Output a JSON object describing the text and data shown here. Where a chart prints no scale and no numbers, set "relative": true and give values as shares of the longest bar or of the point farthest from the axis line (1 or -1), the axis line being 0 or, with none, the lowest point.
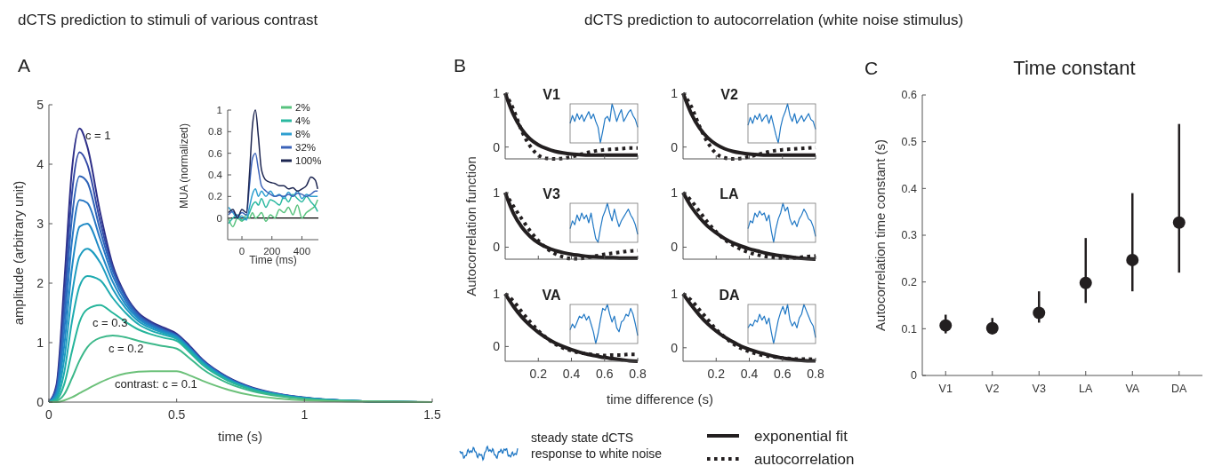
{
  "chart_data": [
    {
      "type": "line",
      "title": "dCTS prediction to stimuli of various contrast",
      "xlabel": "time (s)",
      "ylabel": "amplitude (arbitrary unit)",
      "xlim": [
        0,
        1.5
      ],
      "xticks": [
        0,
        0.5,
        1,
        1.5
      ],
      "ylim": [
        0,
        5
      ],
      "yticks": [
        0,
        1,
        2,
        3,
        4,
        5
      ],
      "legend": false,
      "annotations": [
        "A",
        "c = 1",
        "c = 0.3",
        "c = 0.2",
        "contrast: c = 0.1"
      ],
      "x": [
        0,
        0.03,
        0.06,
        0.09,
        0.12,
        0.15,
        0.2,
        0.25,
        0.3,
        0.35,
        0.4,
        0.45,
        0.5,
        0.55,
        0.6,
        0.7,
        0.8,
        0.9,
        1.0,
        1.2,
        1.5
      ],
      "series": [
        {
          "color": "#2e2f88",
          "values": [
            0,
            0.3,
            2.0,
            3.9,
            4.6,
            4.3,
            3.2,
            2.3,
            1.8,
            1.5,
            1.35,
            1.25,
            1.15,
            0.95,
            0.72,
            0.42,
            0.24,
            0.14,
            0.08,
            0.02,
            0
          ]
        },
        {
          "color": "#3349a6",
          "values": [
            0,
            0.25,
            1.7,
            3.5,
            4.2,
            4.0,
            3.05,
            2.25,
            1.78,
            1.48,
            1.33,
            1.23,
            1.13,
            0.93,
            0.71,
            0.41,
            0.23,
            0.13,
            0.07,
            0.02,
            0
          ]
        },
        {
          "color": "#2f63b8",
          "values": [
            0,
            0.2,
            1.45,
            3.1,
            3.8,
            3.7,
            2.9,
            2.2,
            1.75,
            1.46,
            1.31,
            1.21,
            1.12,
            0.92,
            0.7,
            0.4,
            0.23,
            0.13,
            0.07,
            0.02,
            0
          ]
        },
        {
          "color": "#2877c4",
          "values": [
            0,
            0.17,
            1.2,
            2.7,
            3.4,
            3.35,
            2.75,
            2.12,
            1.7,
            1.43,
            1.29,
            1.2,
            1.11,
            0.91,
            0.69,
            0.4,
            0.22,
            0.13,
            0.07,
            0.02,
            0
          ]
        },
        {
          "color": "#208ac6",
          "values": [
            0,
            0.14,
            0.95,
            2.25,
            2.95,
            3.0,
            2.55,
            2.02,
            1.64,
            1.4,
            1.27,
            1.18,
            1.1,
            0.9,
            0.68,
            0.39,
            0.22,
            0.12,
            0.07,
            0.02,
            0
          ]
        },
        {
          "color": "#1d9cc0",
          "values": [
            0,
            0.1,
            0.72,
            1.8,
            2.45,
            2.58,
            2.35,
            1.9,
            1.58,
            1.36,
            1.24,
            1.16,
            1.08,
            0.89,
            0.67,
            0.38,
            0.21,
            0.12,
            0.06,
            0.02,
            0
          ]
        },
        {
          "color": "#1fabb0",
          "values": [
            0,
            0.07,
            0.5,
            1.35,
            1.95,
            2.12,
            2.05,
            1.75,
            1.5,
            1.31,
            1.2,
            1.13,
            1.06,
            0.87,
            0.66,
            0.37,
            0.21,
            0.12,
            0.06,
            0.02,
            0
          ]
        },
        {
          "color": "#26b59b",
          "values": [
            0,
            0.04,
            0.3,
            0.85,
            1.35,
            1.56,
            1.63,
            1.5,
            1.35,
            1.22,
            1.14,
            1.08,
            1.03,
            0.84,
            0.63,
            0.36,
            0.2,
            0.11,
            0.06,
            0.02,
            0
          ]
        },
        {
          "color": "#3cb88a",
          "values": [
            0,
            0.02,
            0.13,
            0.4,
            0.7,
            0.92,
            1.08,
            1.12,
            1.09,
            1.03,
            0.98,
            0.94,
            0.9,
            0.74,
            0.56,
            0.32,
            0.18,
            0.1,
            0.05,
            0.01,
            0
          ]
        },
        {
          "color": "#6cc17a",
          "values": [
            0,
            0,
            0.03,
            0.08,
            0.15,
            0.22,
            0.33,
            0.42,
            0.48,
            0.51,
            0.52,
            0.52,
            0.52,
            0.45,
            0.36,
            0.21,
            0.11,
            0.06,
            0.03,
            0.01,
            0
          ]
        }
      ]
    },
    {
      "type": "line",
      "xlabel": "Time (ms)",
      "ylabel": "MUA (normalized)",
      "xlim": [
        -95,
        510
      ],
      "xticks": [
        0,
        200,
        400
      ],
      "ylim": [
        -0.2,
        1
      ],
      "yticks": [
        0,
        0.2,
        0.4,
        0.6,
        0.8,
        1
      ],
      "legend": "top right",
      "ref_lines": [
        {
          "axis": "y",
          "value": 0,
          "color": "#000000"
        }
      ],
      "x": [
        -90,
        -60,
        -30,
        0,
        30,
        50,
        70,
        90,
        110,
        130,
        160,
        190,
        220,
        250,
        280,
        310,
        340,
        370,
        400,
        430,
        460,
        490,
        505
      ],
      "series": [
        {
          "name": "2%",
          "color": "#58c27e",
          "values": [
            0.0,
            -0.08,
            0.0,
            -0.03,
            0.03,
            0.0,
            0.05,
            0.0,
            0.02,
            0.05,
            -0.03,
            0.03,
            0.0,
            0.08,
            0.05,
            0.1,
            0.03,
            0.12,
            0.0,
            0.05,
            0.08,
            0.12,
            0.17
          ]
        },
        {
          "name": "4%",
          "color": "#2ab8a0",
          "values": [
            -0.05,
            0.0,
            0.03,
            -0.02,
            0.0,
            0.05,
            0.12,
            0.15,
            0.12,
            0.18,
            0.1,
            0.17,
            0.15,
            0.12,
            0.2,
            0.15,
            0.22,
            0.18,
            0.15,
            0.2,
            0.15,
            0.1,
            0.06
          ]
        },
        {
          "name": "8%",
          "color": "#2e9fd0",
          "values": [
            0.1,
            0.05,
            0.0,
            0.02,
            -0.02,
            0.1,
            0.22,
            0.27,
            0.2,
            0.25,
            0.2,
            0.25,
            0.2,
            0.22,
            0.18,
            0.24,
            0.2,
            0.25,
            0.18,
            0.22,
            0.2,
            0.2,
            0.2
          ]
        },
        {
          "name": "32%",
          "color": "#3a62b8",
          "values": [
            0.03,
            0.06,
            0.02,
            0.05,
            0.03,
            0.3,
            0.55,
            0.6,
            0.45,
            0.3,
            0.25,
            0.22,
            0.2,
            0.21,
            0.2,
            0.22,
            0.2,
            0.23,
            0.22,
            0.2,
            0.22,
            0.25,
            0.25
          ]
        },
        {
          "name": "100%",
          "color": "#1c2550",
          "values": [
            0.05,
            0.08,
            0.0,
            0.08,
            0.05,
            0.4,
            0.85,
            1.0,
            0.75,
            0.45,
            0.35,
            0.33,
            0.32,
            0.3,
            0.3,
            0.27,
            0.28,
            0.25,
            0.27,
            0.3,
            0.38,
            0.35,
            0.27
          ]
        }
      ]
    },
    {
      "type": "line",
      "title": "V1",
      "xlim": [
        0,
        0.8
      ],
      "xticks": [
        0.2,
        0.4,
        0.6,
        0.8
      ],
      "ylim": [
        -0.22,
        1
      ],
      "yticks": [
        0,
        1
      ],
      "tick_labels": "y",
      "annotations": [
        "B",
        "dCTS prediction to autocorrelation (white noise stimulus)",
        "steady state dCTS response to white noise"
      ],
      "x": [
        0,
        0.05,
        0.1,
        0.15,
        0.2,
        0.25,
        0.3,
        0.35,
        0.4,
        0.45,
        0.5,
        0.55,
        0.6,
        0.65,
        0.7,
        0.75,
        0.8
      ],
      "series": [
        {
          "color": "#231f20",
          "line_style": "solid",
          "values": [
            1,
            0.6,
            0.33,
            0.15,
            0.04,
            -0.03,
            -0.08,
            -0.11,
            -0.13,
            -0.14,
            -0.15,
            -0.15,
            -0.15,
            -0.15,
            -0.15,
            -0.15,
            -0.15
          ]
        },
        {
          "color": "#231f20",
          "line_style": "dotted",
          "values": [
            1,
            0.7,
            0.3,
            0.02,
            -0.15,
            -0.21,
            -0.22,
            -0.21,
            -0.18,
            -0.14,
            -0.1,
            -0.07,
            -0.05,
            -0.04,
            -0.03,
            -0.02,
            -0.02
          ]
        }
      ]
    },
    {
      "type": "line",
      "title": "V2",
      "xlim": [
        0,
        0.8
      ],
      "xticks": [
        0.2,
        0.4,
        0.6,
        0.8
      ],
      "ylim": [
        -0.22,
        1
      ],
      "yticks": [
        0,
        1
      ],
      "tick_labels": "y",
      "x": [
        0,
        0.05,
        0.1,
        0.15,
        0.2,
        0.25,
        0.3,
        0.35,
        0.4,
        0.45,
        0.5,
        0.55,
        0.6,
        0.65,
        0.7,
        0.75,
        0.8
      ],
      "series": [
        {
          "color": "#231f20",
          "line_style": "solid",
          "values": [
            1,
            0.62,
            0.35,
            0.17,
            0.05,
            -0.03,
            -0.08,
            -0.11,
            -0.13,
            -0.14,
            -0.15,
            -0.15,
            -0.15,
            -0.15,
            -0.15,
            -0.15,
            -0.15
          ]
        },
        {
          "color": "#231f20",
          "line_style": "dotted",
          "values": [
            1,
            0.75,
            0.38,
            0.08,
            -0.12,
            -0.2,
            -0.22,
            -0.21,
            -0.18,
            -0.14,
            -0.1,
            -0.07,
            -0.05,
            -0.04,
            -0.03,
            -0.02,
            -0.01
          ]
        }
      ]
    },
    {
      "type": "line",
      "title": "V3",
      "ylabel": "Autocorrelation function",
      "xlim": [
        0,
        0.8
      ],
      "xticks": [
        0.2,
        0.4,
        0.6,
        0.8
      ],
      "ylim": [
        -0.22,
        1
      ],
      "yticks": [
        0,
        1
      ],
      "tick_labels": "y",
      "x": [
        0,
        0.05,
        0.1,
        0.15,
        0.2,
        0.25,
        0.3,
        0.35,
        0.4,
        0.45,
        0.5,
        0.55,
        0.6,
        0.65,
        0.7,
        0.75,
        0.8
      ],
      "series": [
        {
          "color": "#231f20",
          "line_style": "solid",
          "values": [
            1,
            0.62,
            0.37,
            0.2,
            0.08,
            0.0,
            -0.06,
            -0.1,
            -0.13,
            -0.15,
            -0.17,
            -0.18,
            -0.19,
            -0.19,
            -0.2,
            -0.2,
            -0.2
          ]
        },
        {
          "color": "#231f20",
          "line_style": "dotted",
          "values": [
            1,
            0.75,
            0.52,
            0.3,
            0.12,
            -0.02,
            -0.12,
            -0.18,
            -0.21,
            -0.21,
            -0.19,
            -0.16,
            -0.13,
            -0.11,
            -0.09,
            -0.07,
            -0.06
          ]
        }
      ]
    },
    {
      "type": "line",
      "title": "LA",
      "xlim": [
        0,
        0.8
      ],
      "xticks": [
        0.2,
        0.4,
        0.6,
        0.8
      ],
      "ylim": [
        -0.22,
        1
      ],
      "yticks": [
        0,
        1
      ],
      "tick_labels": "y",
      "x": [
        0,
        0.05,
        0.1,
        0.15,
        0.2,
        0.25,
        0.3,
        0.35,
        0.4,
        0.45,
        0.5,
        0.55,
        0.6,
        0.65,
        0.7,
        0.75,
        0.8
      ],
      "series": [
        {
          "color": "#231f20",
          "line_style": "solid",
          "values": [
            1,
            0.74,
            0.54,
            0.38,
            0.26,
            0.16,
            0.08,
            0.02,
            -0.03,
            -0.07,
            -0.11,
            -0.14,
            -0.16,
            -0.18,
            -0.2,
            -0.21,
            -0.22
          ]
        },
        {
          "color": "#231f20",
          "line_style": "dotted",
          "values": [
            1,
            0.85,
            0.65,
            0.45,
            0.28,
            0.14,
            0.04,
            -0.04,
            -0.1,
            -0.14,
            -0.17,
            -0.19,
            -0.2,
            -0.2,
            -0.19,
            -0.17,
            -0.16
          ]
        }
      ]
    },
    {
      "type": "line",
      "title": "VA",
      "xlabel": "time difference (s)",
      "xlim": [
        0,
        0.8
      ],
      "xticks": [
        0.2,
        0.4,
        0.6,
        0.8
      ],
      "ylim": [
        -0.28,
        1
      ],
      "yticks": [
        0,
        1
      ],
      "x": [
        0,
        0.05,
        0.1,
        0.15,
        0.2,
        0.25,
        0.3,
        0.35,
        0.4,
        0.45,
        0.5,
        0.55,
        0.6,
        0.65,
        0.7,
        0.75,
        0.8
      ],
      "series": [
        {
          "color": "#231f20",
          "line_style": "solid",
          "values": [
            1,
            0.76,
            0.56,
            0.4,
            0.27,
            0.16,
            0.07,
            0.0,
            -0.06,
            -0.11,
            -0.15,
            -0.18,
            -0.21,
            -0.23,
            -0.25,
            -0.27,
            -0.28
          ]
        },
        {
          "color": "#231f20",
          "line_style": "dotted",
          "values": [
            1,
            0.86,
            0.66,
            0.47,
            0.3,
            0.16,
            0.05,
            -0.03,
            -0.08,
            -0.12,
            -0.14,
            -0.16,
            -0.17,
            -0.16,
            -0.16,
            -0.15,
            -0.15
          ]
        }
      ]
    },
    {
      "type": "line",
      "title": "DA",
      "xlim": [
        0,
        0.8
      ],
      "xticks": [
        0.2,
        0.4,
        0.6,
        0.8
      ],
      "ylim": [
        -0.25,
        1
      ],
      "yticks": [
        0,
        1
      ],
      "legend": "bottom",
      "x": [
        0,
        0.05,
        0.1,
        0.15,
        0.2,
        0.25,
        0.3,
        0.35,
        0.4,
        0.45,
        0.5,
        0.55,
        0.6,
        0.65,
        0.7,
        0.75,
        0.8
      ],
      "series": [
        {
          "name": "exponential fit",
          "color": "#231f20",
          "line_style": "solid",
          "values": [
            1,
            0.79,
            0.6,
            0.44,
            0.31,
            0.2,
            0.11,
            0.03,
            -0.03,
            -0.08,
            -0.12,
            -0.16,
            -0.19,
            -0.21,
            -0.23,
            -0.24,
            -0.24
          ]
        },
        {
          "name": "autocorrelation",
          "color": "#231f20",
          "line_style": "dotted",
          "values": [
            1,
            0.88,
            0.7,
            0.52,
            0.34,
            0.2,
            0.08,
            -0.01,
            -0.07,
            -0.12,
            -0.15,
            -0.17,
            -0.19,
            -0.2,
            -0.21,
            -0.21,
            -0.22
          ]
        }
      ]
    },
    {
      "type": "scatter",
      "title": "Time constant",
      "ylabel": "Autocorrelation time constant (s)",
      "annotations": [
        "C"
      ],
      "categories": [
        "V1",
        "V2",
        "V3",
        "LA",
        "VA",
        "DA"
      ],
      "ylim": [
        0,
        0.6
      ],
      "yticks": [
        0,
        0.1,
        0.2,
        0.3,
        0.4,
        0.5,
        0.6
      ],
      "marker": "circle",
      "color": "#231f20",
      "values": [
        0.107,
        0.101,
        0.134,
        0.198,
        0.247,
        0.327
      ],
      "errors": [
        [
          0.09,
          0.13
        ],
        [
          0.088,
          0.123
        ],
        [
          0.113,
          0.18
        ],
        [
          0.155,
          0.294
        ],
        [
          0.18,
          0.39
        ],
        [
          0.22,
          0.538
        ]
      ]
    },
    {
      "type": "line",
      "relative": true,
      "tick_labels": false,
      "color": "#1f77c4",
      "categories": [
        null,
        null,
        null,
        null,
        null,
        null,
        null,
        null,
        null,
        null,
        null,
        null,
        null,
        null,
        null,
        null,
        null,
        null,
        null,
        null,
        null,
        null,
        null,
        null,
        null,
        null,
        null,
        null,
        null,
        null
      ],
      "values": [
        0.5,
        0.7,
        0.55,
        0.75,
        0.6,
        0.72,
        0.55,
        0.68,
        0.8,
        0.62,
        0.74,
        0.55,
        0.4,
        0,
        0.3,
        0.62,
        0.68,
        0.55,
        1,
        0.8,
        0.55,
        0.72,
        0.85,
        0.55,
        0.66,
        0.78,
        0.85,
        0.7,
        0.6,
        0.4
      ]
    },
    {
      "type": "line",
      "relative": true,
      "tick_labels": false,
      "color": "#1f77c4",
      "categories": [
        null,
        null,
        null,
        null,
        null,
        null,
        null,
        null,
        null,
        null,
        null,
        null,
        null,
        null,
        null,
        null,
        null,
        null,
        null,
        null,
        null,
        null,
        null,
        null,
        null,
        null,
        null,
        null,
        null,
        null
      ],
      "values": [
        0.45,
        0.65,
        0.5,
        0.7,
        0.6,
        0.75,
        0.55,
        0.65,
        0.72,
        0.5,
        0.7,
        0.45,
        0.2,
        0,
        0.4,
        0.65,
        0.8,
        1,
        0.7,
        0.55,
        0.75,
        0.5,
        0.6,
        0.7,
        0.55,
        0.65,
        0.75,
        0.6,
        0.55,
        0.35
      ]
    },
    {
      "type": "line",
      "relative": true,
      "tick_labels": false,
      "color": "#1f77c4",
      "categories": [
        null,
        null,
        null,
        null,
        null,
        null,
        null,
        null,
        null,
        null,
        null,
        null,
        null,
        null,
        null,
        null,
        null,
        null,
        null,
        null,
        null,
        null,
        null,
        null,
        null,
        null,
        null,
        null,
        null,
        null
      ],
      "values": [
        0.35,
        0.55,
        0.45,
        0.7,
        0.55,
        0.75,
        0.6,
        0.7,
        0.5,
        0.75,
        0.4,
        0.1,
        0,
        0.35,
        0.65,
        0.8,
        1,
        0.75,
        0.55,
        0.85,
        0.6,
        0.4,
        0.55,
        0.65,
        0.75,
        0.85,
        0.7,
        0.6,
        0.45,
        0.2
      ]
    },
    {
      "type": "line",
      "relative": true,
      "tick_labels": false,
      "color": "#1f77c4",
      "categories": [
        null,
        null,
        null,
        null,
        null,
        null,
        null,
        null,
        null,
        null,
        null,
        null,
        null,
        null,
        null,
        null,
        null,
        null,
        null,
        null,
        null,
        null,
        null,
        null,
        null,
        null,
        null,
        null,
        null,
        null
      ],
      "values": [
        0.35,
        0.55,
        0.5,
        0.75,
        0.65,
        0.8,
        0.7,
        0.75,
        0.55,
        0.7,
        0.3,
        0,
        0.35,
        0.6,
        0.75,
        1,
        0.8,
        0.9,
        0.6,
        0.45,
        0.55,
        0.4,
        0.6,
        0.7,
        0.85,
        0.75,
        0.6,
        0.55,
        0.4,
        0.15
      ]
    },
    {
      "type": "line",
      "relative": true,
      "tick_labels": false,
      "color": "#1f77c4",
      "categories": [
        null,
        null,
        null,
        null,
        null,
        null,
        null,
        null,
        null,
        null,
        null,
        null,
        null,
        null,
        null,
        null,
        null,
        null,
        null,
        null,
        null,
        null,
        null,
        null,
        null,
        null,
        null,
        null,
        null,
        null
      ],
      "values": [
        0.35,
        0.5,
        0.4,
        0.55,
        0.7,
        0.65,
        0.75,
        0.6,
        0.7,
        0.5,
        0.3,
        0,
        0.25,
        0.6,
        0.9,
        0.85,
        1,
        0.75,
        0.55,
        0.7,
        0.4,
        0.3,
        0.55,
        0.6,
        0.75,
        0.7,
        0.9,
        0.75,
        0.5,
        0.2
      ]
    },
    {
      "type": "line",
      "relative": true,
      "tick_labels": false,
      "color": "#1f77c4",
      "categories": [
        null,
        null,
        null,
        null,
        null,
        null,
        null,
        null,
        null,
        null,
        null,
        null,
        null,
        null,
        null,
        null,
        null,
        null,
        null,
        null,
        null,
        null,
        null,
        null,
        null,
        null,
        null,
        null,
        null,
        null
      ],
      "values": [
        0.4,
        0.5,
        0.45,
        0.6,
        0.55,
        0.75,
        0.6,
        0.7,
        0.5,
        0.65,
        0.3,
        0,
        0.3,
        0.6,
        0.8,
        0.95,
        0.75,
        1,
        0.6,
        0.45,
        0.55,
        0.4,
        0.65,
        0.75,
        1,
        0.85,
        0.7,
        0.55,
        0.45,
        0.15
      ]
    }
  ]
}
